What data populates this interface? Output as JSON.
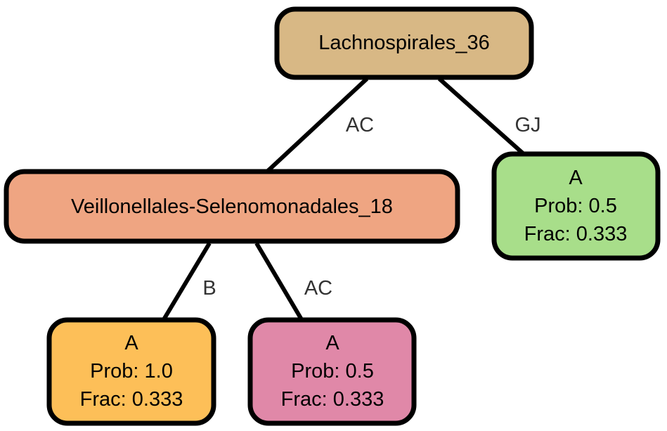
{
  "nodes": {
    "root": {
      "lines": [
        "Lachnospirales_36"
      ],
      "color": "#D8B885"
    },
    "mid": {
      "lines": [
        "Veillonellales-Selenomonadales_18"
      ],
      "color": "#EFA582"
    },
    "leaf_gj": {
      "lines": [
        "A",
        "Prob: 0.5",
        "Frac: 0.333"
      ],
      "color": "#A8DE8A"
    },
    "leaf_b": {
      "lines": [
        "A",
        "Prob: 1.0",
        "Frac: 0.333"
      ],
      "color": "#FDBF58"
    },
    "leaf_ac": {
      "lines": [
        "A",
        "Prob: 0.5",
        "Frac: 0.333"
      ],
      "color": "#E088A8"
    }
  },
  "edges": {
    "root_mid": {
      "label": "AC"
    },
    "root_gj": {
      "label": "GJ"
    },
    "mid_b": {
      "label": "B"
    },
    "mid_ac": {
      "label": "AC"
    }
  }
}
